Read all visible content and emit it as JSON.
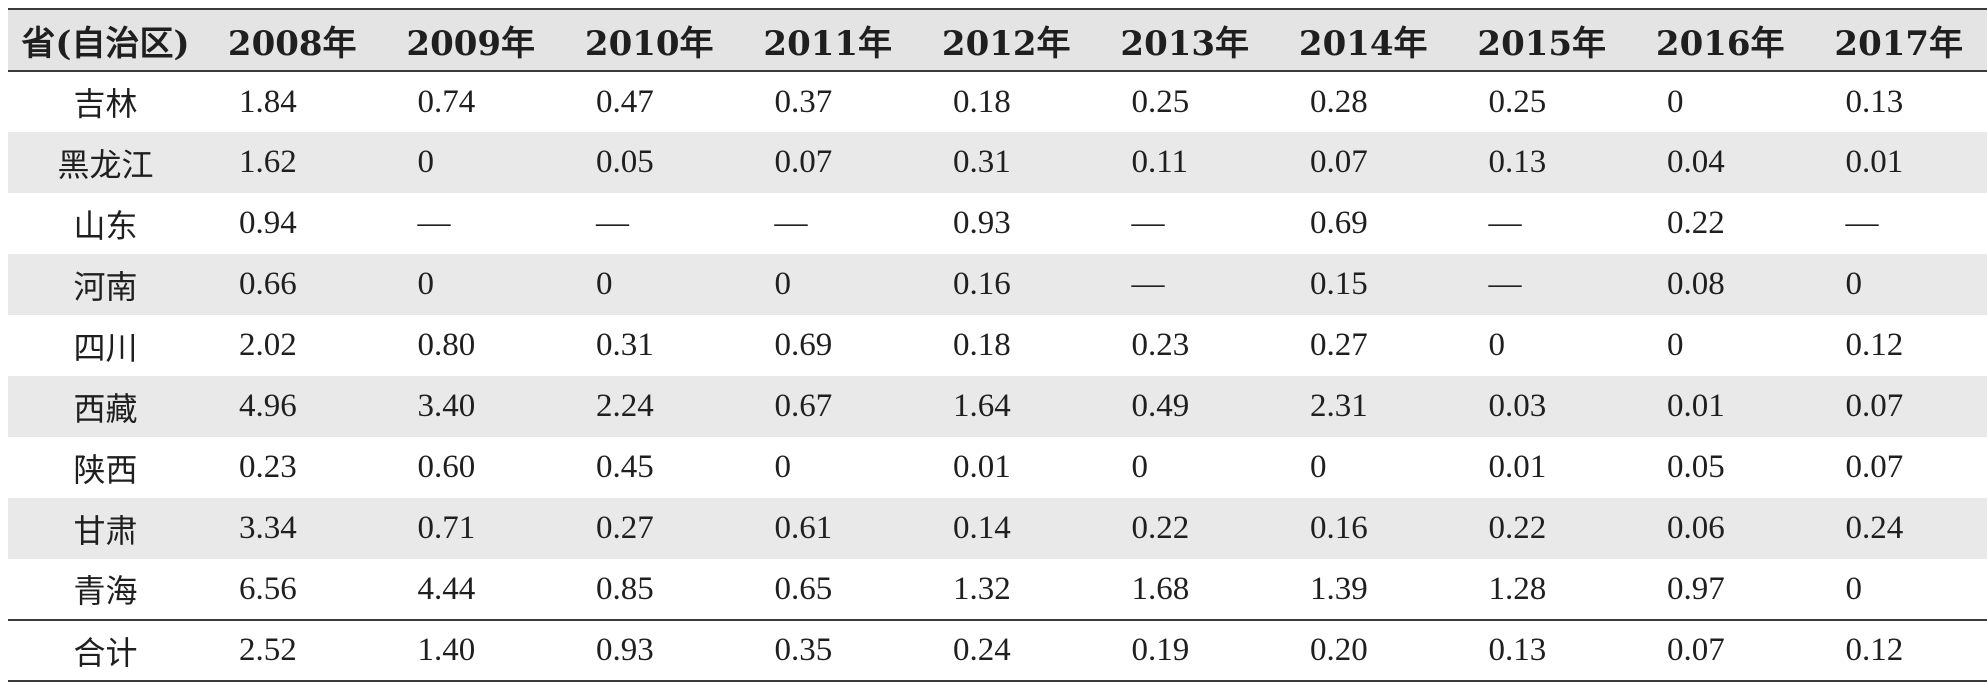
{
  "table": {
    "columns": [
      "省(自治区)",
      "2008年",
      "2009年",
      "2010年",
      "2011年",
      "2012年",
      "2013年",
      "2014年",
      "2015年",
      "2016年",
      "2017年"
    ],
    "rows": [
      {
        "province": "吉林",
        "values": [
          "1.84",
          "0.74",
          "0.47",
          "0.37",
          "0.18",
          "0.25",
          "0.28",
          "0.25",
          "0",
          "0.13"
        ]
      },
      {
        "province": "黑龙江",
        "values": [
          "1.62",
          "0",
          "0.05",
          "0.07",
          "0.31",
          "0.11",
          "0.07",
          "0.13",
          "0.04",
          "0.01"
        ]
      },
      {
        "province": "山东",
        "values": [
          "0.94",
          "—",
          "—",
          "—",
          "0.93",
          "—",
          "0.69",
          "—",
          "0.22",
          "—"
        ]
      },
      {
        "province": "河南",
        "values": [
          "0.66",
          "0",
          "0",
          "0",
          "0.16",
          "—",
          "0.15",
          "—",
          "0.08",
          "0"
        ]
      },
      {
        "province": "四川",
        "values": [
          "2.02",
          "0.80",
          "0.31",
          "0.69",
          "0.18",
          "0.23",
          "0.27",
          "0",
          "0",
          "0.12"
        ]
      },
      {
        "province": "西藏",
        "values": [
          "4.96",
          "3.40",
          "2.24",
          "0.67",
          "1.64",
          "0.49",
          "2.31",
          "0.03",
          "0.01",
          "0.07"
        ]
      },
      {
        "province": "陕西",
        "values": [
          "0.23",
          "0.60",
          "0.45",
          "0",
          "0.01",
          "0",
          "0",
          "0.01",
          "0.05",
          "0.07"
        ]
      },
      {
        "province": "甘肃",
        "values": [
          "3.34",
          "0.71",
          "0.27",
          "0.61",
          "0.14",
          "0.22",
          "0.16",
          "0.22",
          "0.06",
          "0.24"
        ]
      },
      {
        "province": "青海",
        "values": [
          "6.56",
          "4.44",
          "0.85",
          "0.65",
          "1.32",
          "1.68",
          "1.39",
          "1.28",
          "0.97",
          "0"
        ]
      }
    ],
    "total": {
      "province": "合计",
      "values": [
        "2.52",
        "1.40",
        "0.93",
        "0.35",
        "0.24",
        "0.19",
        "0.20",
        "0.13",
        "0.07",
        "0.12"
      ]
    }
  }
}
